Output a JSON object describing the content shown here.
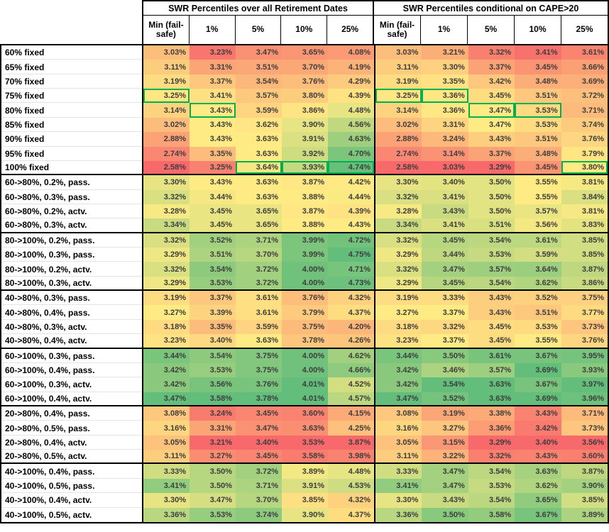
{
  "colors": {
    "scale_red": "#F8696B",
    "scale_yellow": "#FFEB84",
    "scale_green": "#63BE7B",
    "highlight_border": "#00B050",
    "grid_black": "#000000"
  },
  "conditional_format_note": "3-color scale applied per column: red = column min, yellow = column median, green = column max; green outline marks best fixed-allocation cell per column",
  "highlights": [
    {
      "table": 0,
      "row": 3,
      "col": 0
    },
    {
      "table": 0,
      "row": 4,
      "col": 1
    },
    {
      "table": 0,
      "row": 8,
      "col": 2
    },
    {
      "table": 0,
      "row": 8,
      "col": 3
    },
    {
      "table": 0,
      "row": 8,
      "col": 4
    },
    {
      "table": 1,
      "row": 3,
      "col": 0
    },
    {
      "table": 1,
      "row": 3,
      "col": 1
    },
    {
      "table": 1,
      "row": 4,
      "col": 2
    },
    {
      "table": 1,
      "row": 4,
      "col": 3
    },
    {
      "table": 1,
      "row": 8,
      "col": 4
    }
  ],
  "group_breaks_after": [
    8,
    12,
    16,
    20,
    24,
    28
  ],
  "chart_data": {
    "type": "table",
    "title": "SWR percentiles by portfolio strategy (heatmap table)",
    "column_groups": [
      {
        "title": "SWR Percentiles over all Retirement Dates",
        "columns": [
          "Min (fail-safe)",
          "1%",
          "5%",
          "10%",
          "25%"
        ]
      },
      {
        "title": "SWR Percentiles conditional on CAPE>20",
        "columns": [
          "Min (fail-safe)",
          "1%",
          "5%",
          "10%",
          "25%"
        ]
      }
    ],
    "rows": [
      {
        "label": "60% fixed",
        "values": [
          [
            "3.03%",
            "3.23%",
            "3.47%",
            "3.65%",
            "4.08%"
          ],
          [
            "3.03%",
            "3.21%",
            "3.32%",
            "3.41%",
            "3.61%"
          ]
        ]
      },
      {
        "label": "65% fixed",
        "values": [
          [
            "3.11%",
            "3.31%",
            "3.51%",
            "3.70%",
            "4.19%"
          ],
          [
            "3.11%",
            "3.30%",
            "3.37%",
            "3.45%",
            "3.66%"
          ]
        ]
      },
      {
        "label": "70% fixed",
        "values": [
          [
            "3.19%",
            "3.37%",
            "3.54%",
            "3.76%",
            "4.29%"
          ],
          [
            "3.19%",
            "3.35%",
            "3.42%",
            "3.48%",
            "3.69%"
          ]
        ]
      },
      {
        "label": "75% fixed",
        "values": [
          [
            "3.25%",
            "3.41%",
            "3.57%",
            "3.80%",
            "4.39%"
          ],
          [
            "3.25%",
            "3.36%",
            "3.45%",
            "3.51%",
            "3.72%"
          ]
        ]
      },
      {
        "label": "80% fixed",
        "values": [
          [
            "3.14%",
            "3.43%",
            "3.59%",
            "3.86%",
            "4.48%"
          ],
          [
            "3.14%",
            "3.36%",
            "3.47%",
            "3.53%",
            "3.71%"
          ]
        ]
      },
      {
        "label": "85% fixed",
        "values": [
          [
            "3.02%",
            "3.43%",
            "3.62%",
            "3.90%",
            "4.56%"
          ],
          [
            "3.02%",
            "3.31%",
            "3.47%",
            "3.53%",
            "3.74%"
          ]
        ]
      },
      {
        "label": "90% fixed",
        "values": [
          [
            "2.88%",
            "3.43%",
            "3.63%",
            "3.91%",
            "4.63%"
          ],
          [
            "2.88%",
            "3.24%",
            "3.43%",
            "3.51%",
            "3.76%"
          ]
        ]
      },
      {
        "label": "95% fixed",
        "values": [
          [
            "2.74%",
            "3.35%",
            "3.63%",
            "3.92%",
            "4.70%"
          ],
          [
            "2.74%",
            "3.14%",
            "3.37%",
            "3.48%",
            "3.79%"
          ]
        ]
      },
      {
        "label": "100% fixed",
        "values": [
          [
            "2.58%",
            "3.25%",
            "3.64%",
            "3.93%",
            "4.74%"
          ],
          [
            "2.58%",
            "3.03%",
            "3.29%",
            "3.45%",
            "3.80%"
          ]
        ]
      },
      {
        "label": "60->80%, 0.2%, pass.",
        "values": [
          [
            "3.30%",
            "3.43%",
            "3.63%",
            "3.87%",
            "4.42%"
          ],
          [
            "3.30%",
            "3.40%",
            "3.50%",
            "3.55%",
            "3.81%"
          ]
        ]
      },
      {
        "label": "60->80%, 0.3%, pass.",
        "values": [
          [
            "3.32%",
            "3.44%",
            "3.63%",
            "3.88%",
            "4.44%"
          ],
          [
            "3.32%",
            "3.41%",
            "3.50%",
            "3.55%",
            "3.84%"
          ]
        ]
      },
      {
        "label": "60->80%, 0.2%, actv.",
        "values": [
          [
            "3.28%",
            "3.45%",
            "3.65%",
            "3.87%",
            "4.39%"
          ],
          [
            "3.28%",
            "3.43%",
            "3.50%",
            "3.57%",
            "3.81%"
          ]
        ]
      },
      {
        "label": "60->80%, 0.3%, actv.",
        "values": [
          [
            "3.34%",
            "3.45%",
            "3.65%",
            "3.88%",
            "4.43%"
          ],
          [
            "3.34%",
            "3.41%",
            "3.51%",
            "3.56%",
            "3.83%"
          ]
        ]
      },
      {
        "label": "80->100%, 0.2%, pass.",
        "values": [
          [
            "3.32%",
            "3.52%",
            "3.71%",
            "3.99%",
            "4.72%"
          ],
          [
            "3.32%",
            "3.45%",
            "3.54%",
            "3.61%",
            "3.85%"
          ]
        ]
      },
      {
        "label": "80->100%, 0.3%, pass.",
        "values": [
          [
            "3.29%",
            "3.51%",
            "3.70%",
            "3.99%",
            "4.75%"
          ],
          [
            "3.29%",
            "3.44%",
            "3.53%",
            "3.59%",
            "3.85%"
          ]
        ]
      },
      {
        "label": "80->100%, 0.2%, actv.",
        "values": [
          [
            "3.32%",
            "3.54%",
            "3.72%",
            "4.00%",
            "4.71%"
          ],
          [
            "3.32%",
            "3.47%",
            "3.57%",
            "3.64%",
            "3.87%"
          ]
        ]
      },
      {
        "label": "80->100%, 0.3%, actv.",
        "values": [
          [
            "3.29%",
            "3.53%",
            "3.72%",
            "4.00%",
            "4.73%"
          ],
          [
            "3.29%",
            "3.45%",
            "3.54%",
            "3.62%",
            "3.86%"
          ]
        ]
      },
      {
        "label": "40->80%, 0.3%, pass.",
        "values": [
          [
            "3.19%",
            "3.37%",
            "3.61%",
            "3.76%",
            "4.32%"
          ],
          [
            "3.19%",
            "3.33%",
            "3.43%",
            "3.52%",
            "3.75%"
          ]
        ]
      },
      {
        "label": "40->80%, 0.4%, pass.",
        "values": [
          [
            "3.27%",
            "3.39%",
            "3.61%",
            "3.79%",
            "4.37%"
          ],
          [
            "3.27%",
            "3.37%",
            "3.43%",
            "3.51%",
            "3.77%"
          ]
        ]
      },
      {
        "label": "40->80%, 0.3%, actv.",
        "values": [
          [
            "3.18%",
            "3.35%",
            "3.59%",
            "3.75%",
            "4.20%"
          ],
          [
            "3.18%",
            "3.32%",
            "3.45%",
            "3.53%",
            "3.73%"
          ]
        ]
      },
      {
        "label": "40->80%, 0.4%, actv.",
        "values": [
          [
            "3.23%",
            "3.40%",
            "3.63%",
            "3.78%",
            "4.26%"
          ],
          [
            "3.23%",
            "3.37%",
            "3.45%",
            "3.55%",
            "3.76%"
          ]
        ]
      },
      {
        "label": "60->100%, 0.3%, pass.",
        "values": [
          [
            "3.44%",
            "3.54%",
            "3.75%",
            "4.00%",
            "4.62%"
          ],
          [
            "3.44%",
            "3.50%",
            "3.61%",
            "3.67%",
            "3.95%"
          ]
        ]
      },
      {
        "label": "60->100%, 0.4%, pass.",
        "values": [
          [
            "3.42%",
            "3.53%",
            "3.75%",
            "4.00%",
            "4.66%"
          ],
          [
            "3.42%",
            "3.46%",
            "3.57%",
            "3.69%",
            "3.93%"
          ]
        ]
      },
      {
        "label": "60->100%, 0.3%, actv.",
        "values": [
          [
            "3.42%",
            "3.56%",
            "3.76%",
            "4.01%",
            "4.52%"
          ],
          [
            "3.42%",
            "3.54%",
            "3.63%",
            "3.67%",
            "3.97%"
          ]
        ]
      },
      {
        "label": "60->100%, 0.4%, actv.",
        "values": [
          [
            "3.47%",
            "3.58%",
            "3.78%",
            "4.01%",
            "4.57%"
          ],
          [
            "3.47%",
            "3.52%",
            "3.63%",
            "3.69%",
            "3.96%"
          ]
        ]
      },
      {
        "label": "20->80%, 0.4%, pass.",
        "values": [
          [
            "3.08%",
            "3.24%",
            "3.45%",
            "3.60%",
            "4.15%"
          ],
          [
            "3.08%",
            "3.19%",
            "3.38%",
            "3.43%",
            "3.71%"
          ]
        ]
      },
      {
        "label": "20->80%, 0.5%, pass.",
        "values": [
          [
            "3.16%",
            "3.31%",
            "3.47%",
            "3.63%",
            "4.25%"
          ],
          [
            "3.16%",
            "3.27%",
            "3.36%",
            "3.42%",
            "3.73%"
          ]
        ]
      },
      {
        "label": "20->80%, 0.4%, actv.",
        "values": [
          [
            "3.05%",
            "3.21%",
            "3.40%",
            "3.53%",
            "3.87%"
          ],
          [
            "3.05%",
            "3.15%",
            "3.29%",
            "3.40%",
            "3.56%"
          ]
        ]
      },
      {
        "label": "20->80%, 0.5%, actv.",
        "values": [
          [
            "3.11%",
            "3.27%",
            "3.45%",
            "3.58%",
            "3.98%"
          ],
          [
            "3.11%",
            "3.22%",
            "3.32%",
            "3.43%",
            "3.60%"
          ]
        ]
      },
      {
        "label": "40->100%, 0.4%, pass.",
        "values": [
          [
            "3.33%",
            "3.50%",
            "3.72%",
            "3.89%",
            "4.48%"
          ],
          [
            "3.33%",
            "3.47%",
            "3.54%",
            "3.63%",
            "3.87%"
          ]
        ]
      },
      {
        "label": "40->100%, 0.5%, pass.",
        "values": [
          [
            "3.41%",
            "3.50%",
            "3.71%",
            "3.91%",
            "4.53%"
          ],
          [
            "3.41%",
            "3.47%",
            "3.53%",
            "3.62%",
            "3.90%"
          ]
        ]
      },
      {
        "label": "40->100%, 0.4%, actv.",
        "values": [
          [
            "3.30%",
            "3.47%",
            "3.70%",
            "3.85%",
            "4.32%"
          ],
          [
            "3.30%",
            "3.43%",
            "3.54%",
            "3.65%",
            "3.85%"
          ]
        ]
      },
      {
        "label": "40->100%, 0.5%, actv.",
        "values": [
          [
            "3.36%",
            "3.53%",
            "3.74%",
            "3.90%",
            "4.37%"
          ],
          [
            "3.36%",
            "3.50%",
            "3.58%",
            "3.67%",
            "3.89%"
          ]
        ]
      }
    ]
  }
}
